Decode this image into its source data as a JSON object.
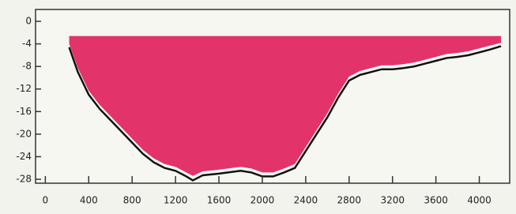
{
  "chart_data": {
    "type": "section",
    "x": [
      220,
      300,
      400,
      500,
      600,
      700,
      800,
      900,
      1000,
      1100,
      1200,
      1300,
      1360,
      1450,
      1600,
      1800,
      1900,
      2000,
      2100,
      2200,
      2300,
      2400,
      2500,
      2600,
      2700,
      2800,
      2900,
      3000,
      3100,
      3200,
      3300,
      3400,
      3500,
      3600,
      3700,
      3800,
      3900,
      4000,
      4100,
      4200
    ],
    "series": [
      {
        "color": "#e3336b",
        "top": -2.6,
        "values": [
          -4.0,
          -8.3,
          -12.3,
          -14.8,
          -16.8,
          -18.8,
          -20.8,
          -22.8,
          -24.3,
          -25.3,
          -25.8,
          -26.8,
          -27.4,
          -26.6,
          -26.3,
          -25.8,
          -26.1,
          -26.8,
          -26.8,
          -26.1,
          -25.3,
          -22.3,
          -19.3,
          -16.3,
          -12.8,
          -9.8,
          -8.8,
          -8.3,
          -7.8,
          -7.8,
          -7.6,
          -7.3,
          -6.8,
          -6.3,
          -5.8,
          -5.6,
          -5.3,
          -4.8,
          -4.3,
          -3.8
        ]
      },
      {
        "color": "#111111",
        "values": [
          -4.6,
          -9,
          -13,
          -15.5,
          -17.5,
          -19.5,
          -21.5,
          -23.5,
          -25,
          -26,
          -26.5,
          -27.5,
          -28.2,
          -27.3,
          -27,
          -26.5,
          -26.8,
          -27.5,
          -27.5,
          -26.8,
          -26,
          -23,
          -20,
          -17,
          -13.5,
          -10.5,
          -9.5,
          -9,
          -8.5,
          -8.5,
          -8.3,
          -8,
          -7.5,
          -7,
          -6.5,
          -6.3,
          -6,
          -5.5,
          -5,
          -4.4
        ]
      }
    ],
    "xlim": [
      -90,
      4280
    ],
    "ylim": [
      -28.7,
      2.1
    ],
    "xticks": [
      0,
      400,
      800,
      1200,
      1600,
      2000,
      2400,
      2800,
      3200,
      3600,
      4000
    ],
    "yticks": [
      0,
      -4,
      -8,
      -12,
      -16,
      -20,
      -24,
      -28
    ]
  }
}
